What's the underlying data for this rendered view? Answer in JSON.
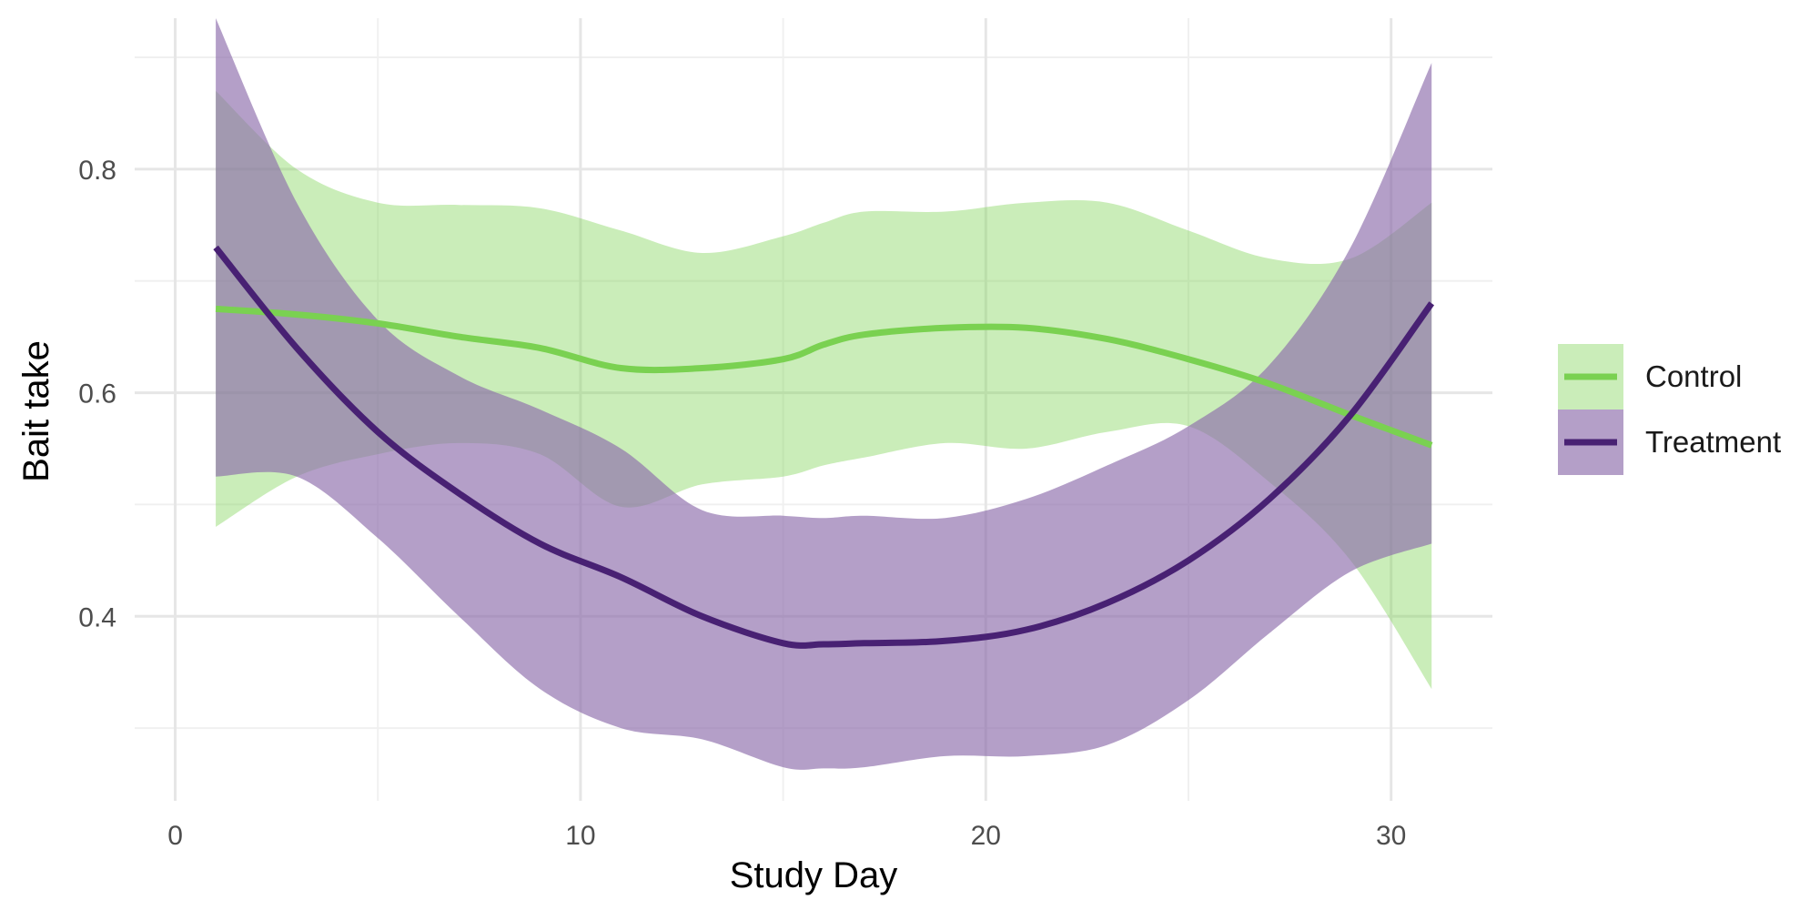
{
  "chart_data": {
    "type": "line",
    "title": "",
    "xlabel": "Study Day",
    "ylabel": "Bait take",
    "xlim": [
      -1,
      32.5
    ],
    "ylim": [
      0.235,
      0.935
    ],
    "x_ticks": [
      0,
      10,
      20,
      30
    ],
    "y_ticks": [
      0.4,
      0.6,
      0.8
    ],
    "x_tick_labels": [
      "0",
      "10",
      "20",
      "30"
    ],
    "y_tick_labels": [
      "0.4",
      "0.6",
      "0.8"
    ],
    "grid": true,
    "legend": {
      "position": "right",
      "items": [
        "Control",
        "Treatment"
      ]
    },
    "series": [
      {
        "name": "Control",
        "color": "#7ad151",
        "band_color": "#7ad151",
        "x": [
          1,
          3,
          5,
          7,
          9,
          11,
          13,
          15,
          16,
          17,
          19,
          21,
          23,
          25,
          27,
          29,
          31
        ],
        "y": [
          0.675,
          0.67,
          0.662,
          0.65,
          0.64,
          0.622,
          0.622,
          0.63,
          0.643,
          0.652,
          0.658,
          0.658,
          0.648,
          0.63,
          0.608,
          0.58,
          0.553
        ],
        "lower": [
          0.48,
          0.525,
          0.545,
          0.555,
          0.545,
          0.498,
          0.518,
          0.525,
          0.535,
          0.542,
          0.555,
          0.55,
          0.565,
          0.57,
          0.52,
          0.45,
          0.335
        ],
        "upper": [
          0.87,
          0.8,
          0.77,
          0.768,
          0.765,
          0.745,
          0.725,
          0.74,
          0.752,
          0.762,
          0.762,
          0.77,
          0.77,
          0.745,
          0.72,
          0.72,
          0.77
        ]
      },
      {
        "name": "Treatment",
        "color": "#482173",
        "band_color": "#8c6cab",
        "x": [
          1,
          3,
          5,
          7,
          9,
          11,
          13,
          15,
          16,
          17,
          19,
          21,
          23,
          25,
          27,
          29,
          31
        ],
        "y": [
          0.73,
          0.64,
          0.565,
          0.51,
          0.465,
          0.435,
          0.4,
          0.376,
          0.375,
          0.376,
          0.378,
          0.388,
          0.412,
          0.45,
          0.505,
          0.58,
          0.68
        ],
        "lower": [
          0.525,
          0.525,
          0.47,
          0.4,
          0.335,
          0.3,
          0.29,
          0.265,
          0.264,
          0.265,
          0.275,
          0.275,
          0.285,
          0.325,
          0.385,
          0.44,
          0.465
        ],
        "upper": [
          0.935,
          0.77,
          0.665,
          0.615,
          0.585,
          0.55,
          0.495,
          0.49,
          0.488,
          0.49,
          0.488,
          0.505,
          0.535,
          0.57,
          0.625,
          0.73,
          0.895
        ]
      }
    ]
  }
}
